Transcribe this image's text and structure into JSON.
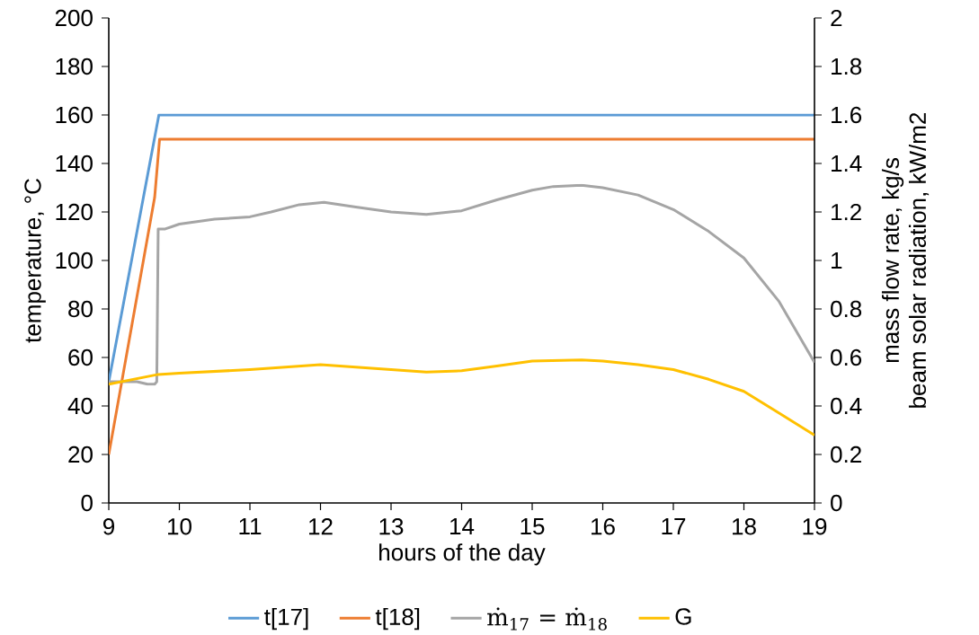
{
  "chart_data": {
    "type": "line",
    "xlabel": "hours of the day",
    "ylabel": "temperature, °C",
    "y2label": "mass flow rate, kg/s\nbeam solar radiation, kW/m2",
    "xlim": [
      9,
      19
    ],
    "xticks": [
      9,
      10,
      11,
      12,
      13,
      14,
      15,
      16,
      17,
      18,
      19
    ],
    "ylim": [
      0,
      200
    ],
    "yticks": [
      0,
      20,
      40,
      60,
      80,
      100,
      120,
      140,
      160,
      180,
      200
    ],
    "y2lim": [
      0,
      2
    ],
    "y2ticks": [
      0,
      0.2,
      0.4,
      0.6,
      0.8,
      1,
      1.2,
      1.4,
      1.6,
      1.8,
      2
    ],
    "legend": "bottom",
    "series": [
      {
        "name": "t[17]",
        "color": "#5b9bd5",
        "x": [
          9,
          9.71,
          9.75,
          19
        ],
        "values": [
          50,
          160,
          160,
          160
        ]
      },
      {
        "name": "t[18]",
        "color": "#ed7d31",
        "x": [
          9,
          9.65,
          9.72,
          9.75,
          19
        ],
        "values": [
          20,
          126,
          150,
          150,
          150
        ]
      },
      {
        "name": "ṁ$_{17}$ = ṁ$_{18}$",
        "color": "#a5a5a5",
        "axis": "y2",
        "x": [
          9,
          9.2,
          9.4,
          9.55,
          9.65,
          9.68,
          9.7,
          9.8,
          10,
          10.5,
          11,
          11.3,
          11.7,
          12.05,
          12.5,
          13,
          13.5,
          14,
          14.5,
          15,
          15.3,
          15.7,
          16,
          16.5,
          17,
          17.5,
          18,
          18.5,
          19
        ],
        "values": [
          0.5,
          0.5,
          0.5,
          0.49,
          0.49,
          0.5,
          1.13,
          1.13,
          1.15,
          1.17,
          1.18,
          1.2,
          1.23,
          1.24,
          1.22,
          1.2,
          1.19,
          1.205,
          1.25,
          1.29,
          1.305,
          1.31,
          1.3,
          1.27,
          1.21,
          1.12,
          1.01,
          0.83,
          0.58
        ]
      },
      {
        "name": "G",
        "color": "#ffc000",
        "axis": "y2",
        "x": [
          9,
          9.7,
          10,
          11,
          12,
          12.5,
          13,
          13.5,
          14,
          14.5,
          15,
          15.7,
          16,
          16.5,
          17,
          17.5,
          18,
          18.5,
          19
        ],
        "values": [
          0.49,
          0.53,
          0.535,
          0.55,
          0.57,
          0.56,
          0.55,
          0.54,
          0.545,
          0.565,
          0.585,
          0.59,
          0.585,
          0.57,
          0.55,
          0.51,
          0.46,
          0.37,
          0.28
        ]
      }
    ]
  }
}
